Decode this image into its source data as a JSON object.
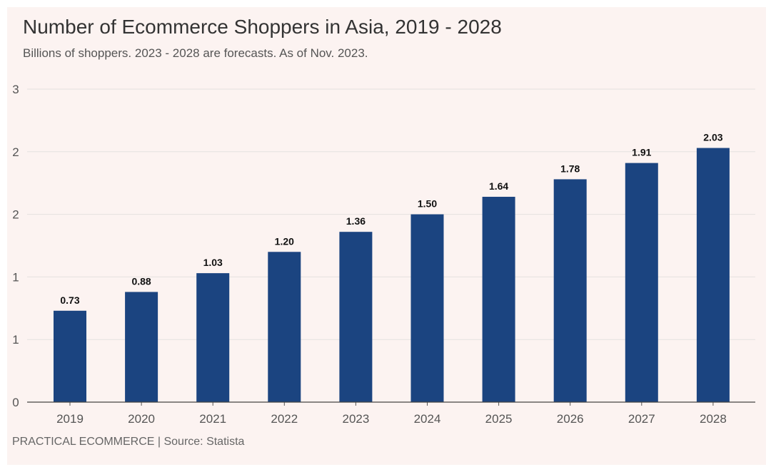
{
  "chart_data": {
    "type": "bar",
    "title": "Number of Ecommerce Shoppers in Asia, 2019 - 2028",
    "subtitle": "Billions of shoppers. 2023 - 2028 are forecasts. As of Nov. 2023.",
    "caption": "PRACTICAL ECOMMERCE | Source: Statista",
    "xlabel": "",
    "ylabel": "",
    "categories": [
      "2019",
      "2020",
      "2021",
      "2022",
      "2023",
      "2024",
      "2025",
      "2026",
      "2027",
      "2028"
    ],
    "values": [
      0.73,
      0.88,
      1.03,
      1.2,
      1.36,
      1.5,
      1.64,
      1.78,
      1.91,
      2.03
    ],
    "value_labels": [
      "0.73",
      "0.88",
      "1.03",
      "1.20",
      "1.36",
      "1.50",
      "1.64",
      "1.78",
      "1.91",
      "2.03"
    ],
    "ylim": [
      0,
      2.5
    ],
    "yticks": [
      0,
      0.5,
      1,
      1.5,
      2,
      2.5
    ],
    "ytick_labels": [
      "0",
      "1",
      "1",
      "2",
      "2",
      "3"
    ],
    "grid": true,
    "legend": "none",
    "bar_color": "#1b4480",
    "background_color": "#fcf3f1"
  }
}
